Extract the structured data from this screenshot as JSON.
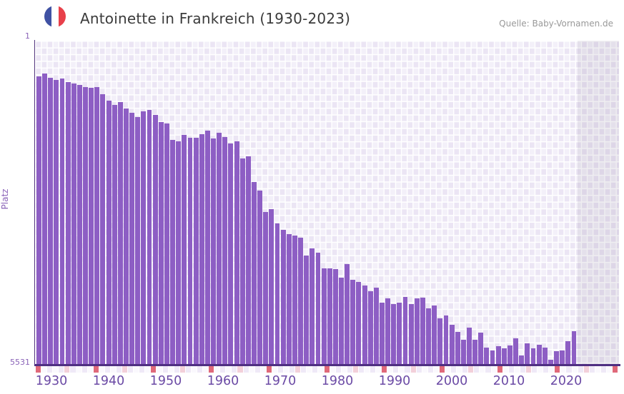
{
  "header": {
    "title": "Antoinette in Frankreich (1930-2023)",
    "flag_icon": "french-flag-circle-icon",
    "source": "Quelle: Baby-Vornamen.de"
  },
  "chart_data": {
    "type": "bar",
    "title": "Antoinette in Frankreich (1930-2023)",
    "xlabel": "",
    "ylabel": "Platz",
    "y_axis": {
      "top_tick": "1",
      "bottom_tick": "5531",
      "min": 1,
      "max": 5531,
      "inverted": true,
      "note": "rank 1 at top, bars grow upward from rank 5531 baseline"
    },
    "x_ticks": [
      "1930",
      "1940",
      "1950",
      "1960",
      "1970",
      "1980",
      "1990",
      "2000",
      "2010",
      "2020"
    ],
    "legend": [],
    "grid": true,
    "no_data_years": [
      2023
    ],
    "years": [
      1930,
      1931,
      1932,
      1933,
      1934,
      1935,
      1936,
      1937,
      1938,
      1939,
      1940,
      1941,
      1942,
      1943,
      1944,
      1945,
      1946,
      1947,
      1948,
      1949,
      1950,
      1951,
      1952,
      1953,
      1954,
      1955,
      1956,
      1957,
      1958,
      1959,
      1960,
      1961,
      1962,
      1963,
      1964,
      1965,
      1966,
      1967,
      1968,
      1969,
      1970,
      1971,
      1972,
      1973,
      1974,
      1975,
      1976,
      1977,
      1978,
      1979,
      1980,
      1981,
      1982,
      1983,
      1984,
      1985,
      1986,
      1987,
      1988,
      1989,
      1990,
      1991,
      1992,
      1993,
      1994,
      1995,
      1996,
      1997,
      1998,
      1999,
      2000,
      2001,
      2002,
      2003,
      2004,
      2005,
      2006,
      2007,
      2008,
      2009,
      2010,
      2011,
      2012,
      2013,
      2014,
      2015,
      2016,
      2017,
      2018,
      2019,
      2020,
      2021,
      2022
    ],
    "ranks": [
      610,
      565,
      635,
      675,
      650,
      710,
      735,
      760,
      795,
      805,
      795,
      915,
      1025,
      1100,
      1050,
      1160,
      1235,
      1305,
      1210,
      1185,
      1270,
      1395,
      1415,
      1700,
      1725,
      1615,
      1660,
      1660,
      1600,
      1540,
      1675,
      1575,
      1650,
      1760,
      1725,
      2015,
      1980,
      2420,
      2565,
      2930,
      2885,
      3125,
      3235,
      3310,
      3335,
      3370,
      3675,
      3555,
      3625,
      3895,
      3895,
      3910,
      4055,
      3820,
      4090,
      4130,
      4190,
      4285,
      4225,
      4480,
      4410,
      4505,
      4480,
      4385,
      4505,
      4410,
      4395,
      4580,
      4530,
      4750,
      4700,
      4860,
      4985,
      5115,
      4910,
      5115,
      4995,
      5250,
      5300,
      5225,
      5265,
      5215,
      5095,
      5385,
      5180,
      5265,
      5200,
      5250,
      5460,
      5310,
      5300,
      5140,
      4970
    ],
    "colors": {
      "bar": "#8d5ec4",
      "marker_red": "#e0697a",
      "marker_pink": "#f3d0da",
      "marker_light_a": "#efe9f7",
      "marker_light_b": "#faf8fd",
      "axis": "#4f2f82",
      "tick_text": "#6b4aa5"
    }
  }
}
